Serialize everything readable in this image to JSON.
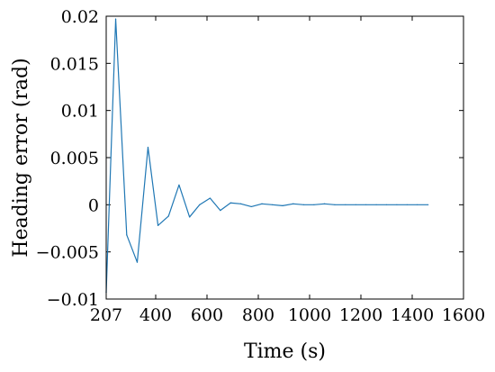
{
  "chart_data": {
    "type": "line",
    "title": "",
    "xlabel": "Time (s)",
    "ylabel": "Heading error (rad)",
    "xlim": [
      207,
      1600
    ],
    "ylim": [
      -0.01,
      0.02
    ],
    "grid": false,
    "xticks": [
      207,
      400,
      600,
      800,
      1000,
      1200,
      1400,
      1600
    ],
    "xtick_labels": [
      "207",
      "400",
      "600",
      "800",
      "1000",
      "1200",
      "1400",
      "1600"
    ],
    "yticks": [
      -0.01,
      -0.005,
      0,
      0.005,
      0.01,
      0.015,
      0.02
    ],
    "ytick_labels": [
      "−0.01",
      "−0.005",
      "0",
      "0.005",
      "0.01",
      "0.015",
      "0.02"
    ],
    "series": [
      {
        "color": "#1f77b4",
        "x": [
          207,
          244,
          287,
          328,
          370,
          409,
          450,
          491,
          532,
          571,
          612,
          652,
          692,
          732,
          773,
          814,
          855,
          895,
          936,
          977,
          1017,
          1058,
          1098,
          1140,
          1180,
          1220,
          1260,
          1300,
          1340,
          1380,
          1420,
          1462
        ],
        "y": [
          -0.0093,
          0.0197,
          -0.0032,
          -0.0061,
          0.0061,
          -0.0022,
          -0.0012,
          0.0021,
          -0.0013,
          0.0,
          0.0007,
          -0.0006,
          0.0002,
          0.0001,
          -0.0002,
          0.0001,
          0.0,
          -0.0001,
          0.0001,
          0.0,
          0.0,
          0.0001,
          0.0,
          0.0,
          0.0,
          0.0,
          0.0,
          0.0,
          0.0,
          0.0,
          0.0,
          0.0
        ]
      }
    ]
  }
}
